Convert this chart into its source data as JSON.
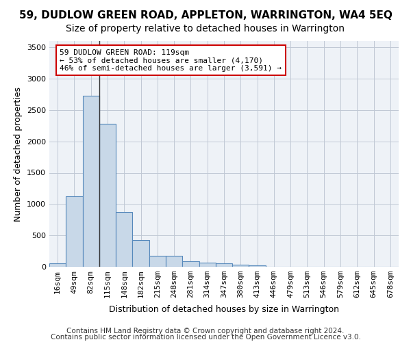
{
  "title1": "59, DUDLOW GREEN ROAD, APPLETON, WARRINGTON, WA4 5EQ",
  "title2": "Size of property relative to detached houses in Warrington",
  "xlabel": "Distribution of detached houses by size in Warrington",
  "ylabel": "Number of detached properties",
  "bar_values": [
    50,
    1120,
    2730,
    2280,
    870,
    430,
    175,
    170,
    90,
    65,
    50,
    30,
    20,
    0,
    0,
    0,
    0,
    0,
    0,
    0,
    0
  ],
  "bar_labels": [
    "16sqm",
    "49sqm",
    "82sqm",
    "115sqm",
    "148sqm",
    "182sqm",
    "215sqm",
    "248sqm",
    "281sqm",
    "314sqm",
    "347sqm",
    "380sqm",
    "413sqm",
    "446sqm",
    "479sqm",
    "513sqm",
    "546sqm",
    "579sqm",
    "612sqm",
    "645sqm",
    "678sqm"
  ],
  "bar_color": "#c8d8e8",
  "bar_edge_color": "#5588bb",
  "ylim": [
    0,
    3600
  ],
  "yticks": [
    0,
    500,
    1000,
    1500,
    2000,
    2500,
    3000,
    3500
  ],
  "property_line_index": 2,
  "annotation_text": "59 DUDLOW GREEN ROAD: 119sqm\n← 53% of detached houses are smaller (4,170)\n46% of semi-detached houses are larger (3,591) →",
  "annotation_box_color": "#ffffff",
  "annotation_border_color": "#cc0000",
  "footer1": "Contains HM Land Registry data © Crown copyright and database right 2024.",
  "footer2": "Contains public sector information licensed under the Open Government Licence v3.0.",
  "bg_color": "#eef2f7",
  "grid_color": "#c0c8d4",
  "title1_fontsize": 11,
  "title2_fontsize": 10,
  "axis_label_fontsize": 9,
  "tick_fontsize": 8,
  "footer_fontsize": 7.5
}
